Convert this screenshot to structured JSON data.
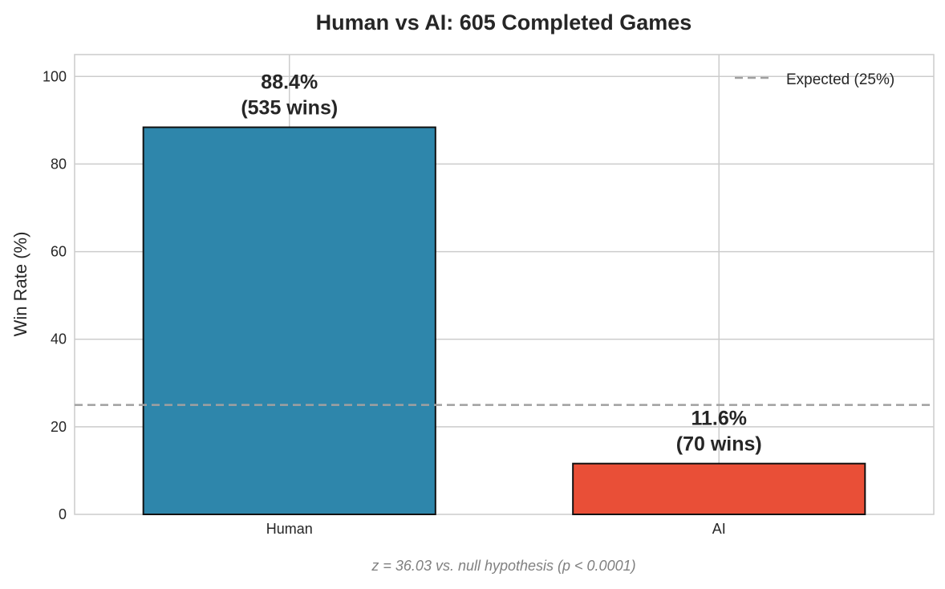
{
  "chart_data": {
    "type": "bar",
    "title": "Human vs AI: 605 Completed Games",
    "xlabel": "",
    "ylabel": "Win Rate (%)",
    "ylim": [
      0,
      105
    ],
    "yticks": [
      0,
      20,
      40,
      60,
      80,
      100
    ],
    "categories": [
      "Human",
      "AI"
    ],
    "values": [
      88.4,
      11.6
    ],
    "wins": [
      535,
      70
    ],
    "value_labels": [
      "88.4%",
      "11.6%"
    ],
    "count_labels": [
      "(535 wins)",
      "(70 wins)"
    ],
    "bar_colors": [
      "#2e86ab",
      "#e94f37"
    ],
    "reference_line": {
      "value": 25,
      "label": "Expected (25%)",
      "color": "#a0a0a0",
      "style": "dashed"
    },
    "legend_position": "top-right",
    "grid": true,
    "footnote": "z = 36.03 vs. null hypothesis (p < 0.0001)"
  }
}
